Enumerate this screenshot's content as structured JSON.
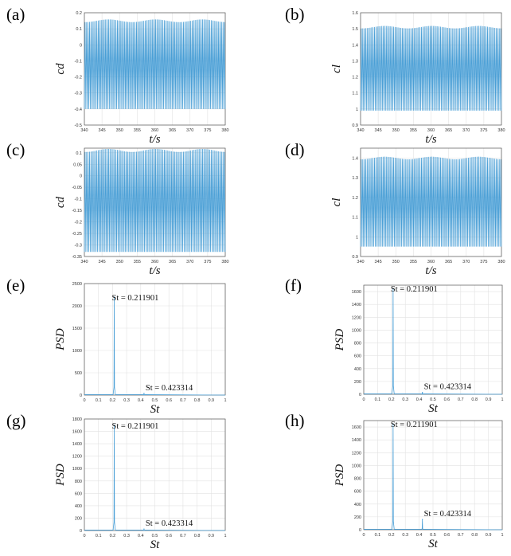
{
  "panels": [
    {
      "letter": "(a)",
      "type": "line",
      "xlabel": "t/s",
      "ylabel": "cd",
      "xticks": [
        "340",
        "345",
        "350",
        "355",
        "360",
        "365",
        "370",
        "375",
        "380"
      ],
      "yticks": [
        "-0.5",
        "-0.4",
        "-0.3",
        "-0.2",
        "-0.1",
        "0",
        "0.1",
        "0.2"
      ],
      "xlim": [
        340,
        380
      ],
      "ylim": [
        -0.5,
        0.2
      ],
      "signal": {
        "min": -0.4,
        "max": 0.15,
        "cycles": 96
      }
    },
    {
      "letter": "(b)",
      "type": "line",
      "xlabel": "t/s",
      "ylabel": "cl",
      "xticks": [
        "340",
        "345",
        "350",
        "355",
        "360",
        "365",
        "370",
        "375",
        "380"
      ],
      "yticks": [
        "0.9",
        "1",
        "1.1",
        "1.2",
        "1.3",
        "1.4",
        "1.5",
        "1.6"
      ],
      "xlim": [
        340,
        380
      ],
      "ylim": [
        0.9,
        1.6
      ],
      "signal": {
        "min": 0.99,
        "max": 1.51,
        "cycles": 96
      }
    },
    {
      "letter": "(c)",
      "type": "line",
      "xlabel": "t/s",
      "ylabel": "cd",
      "xticks": [
        "340",
        "345",
        "350",
        "355",
        "360",
        "365",
        "370",
        "375",
        "380"
      ],
      "yticks": [
        "-0.35",
        "-0.3",
        "-0.25",
        "-0.2",
        "-0.15",
        "-0.1",
        "-0.05",
        "0",
        "0.05",
        "0.1"
      ],
      "xlim": [
        340,
        380
      ],
      "ylim": [
        -0.35,
        0.12
      ],
      "signal": {
        "min": -0.33,
        "max": 0.11,
        "cycles": 96
      }
    },
    {
      "letter": "(d)",
      "type": "line",
      "xlabel": "t/s",
      "ylabel": "cl",
      "xticks": [
        "340",
        "345",
        "350",
        "355",
        "360",
        "365",
        "370",
        "375",
        "380"
      ],
      "yticks": [
        "0.9",
        "1",
        "1.1",
        "1.2",
        "1.3",
        "1.4"
      ],
      "xlim": [
        340,
        380
      ],
      "ylim": [
        0.9,
        1.45
      ],
      "signal": {
        "min": 0.95,
        "max": 1.4,
        "cycles": 96
      }
    },
    {
      "letter": "(e)",
      "type": "psd",
      "xlabel": "St",
      "ylabel": "PSD",
      "xticks": [
        "0",
        "0.1",
        "0.2",
        "0.3",
        "0.4",
        "0.5",
        "0.6",
        "0.7",
        "0.8",
        "0.9",
        "1"
      ],
      "yticks": [
        "0",
        "500",
        "1000",
        "1500",
        "2000",
        "2500"
      ],
      "xlim": [
        0,
        1
      ],
      "ylim": [
        0,
        2500
      ],
      "peaks": [
        {
          "x": 0.211901,
          "y": 2200
        },
        {
          "x": 0.423314,
          "y": 40
        }
      ],
      "annotations": [
        "St = 0.211901",
        "St = 0.423314"
      ]
    },
    {
      "letter": "(f)",
      "type": "psd",
      "xlabel": "St",
      "ylabel": "PSD",
      "xticks": [
        "0",
        "0.1",
        "0.2",
        "0.3",
        "0.4",
        "0.5",
        "0.6",
        "0.7",
        "0.8",
        "0.9",
        "1"
      ],
      "yticks": [
        "0",
        "200",
        "400",
        "600",
        "800",
        "1000",
        "1200",
        "1400",
        "1600"
      ],
      "xlim": [
        0,
        1
      ],
      "ylim": [
        0,
        1700
      ],
      "peaks": [
        {
          "x": 0.211901,
          "y": 1650
        },
        {
          "x": 0.423314,
          "y": 30
        }
      ],
      "annotations": [
        "St = 0.211901",
        "St = 0.423314"
      ]
    },
    {
      "letter": "(g)",
      "type": "psd",
      "xlabel": "St",
      "ylabel": "PSD",
      "xticks": [
        "0",
        "0.1",
        "0.2",
        "0.3",
        "0.4",
        "0.5",
        "0.6",
        "0.7",
        "0.8",
        "0.9",
        "1"
      ],
      "yticks": [
        "0",
        "200",
        "400",
        "600",
        "800",
        "1000",
        "1200",
        "1400",
        "1600",
        "1800"
      ],
      "xlim": [
        0,
        1
      ],
      "ylim": [
        0,
        1800
      ],
      "peaks": [
        {
          "x": 0.211901,
          "y": 1700
        },
        {
          "x": 0.423314,
          "y": 25
        }
      ],
      "annotations": [
        "St = 0.211901",
        "St = 0.423314"
      ]
    },
    {
      "letter": "(h)",
      "type": "psd",
      "xlabel": "St",
      "ylabel": "PSD",
      "xticks": [
        "0",
        "0.1",
        "0.2",
        "0.3",
        "0.4",
        "0.5",
        "0.6",
        "0.7",
        "0.8",
        "0.9",
        "1"
      ],
      "yticks": [
        "0",
        "200",
        "400",
        "600",
        "800",
        "1000",
        "1200",
        "1400",
        "1600"
      ],
      "xlim": [
        0,
        1
      ],
      "ylim": [
        0,
        1700
      ],
      "peaks": [
        {
          "x": 0.211901,
          "y": 1650
        },
        {
          "x": 0.423314,
          "y": 160
        }
      ],
      "annotations": [
        "St = 0.211901",
        "St = 0.423314"
      ]
    }
  ],
  "colors": {
    "line": "#4a9fd6",
    "grid": "#e2e2e2",
    "axis": "#555555"
  },
  "chart_data": [
    {
      "type": "line",
      "xlabel": "t/s",
      "ylabel": "cd",
      "xlim": [
        340,
        380
      ],
      "ylim": [
        -0.5,
        0.2
      ],
      "series": [
        {
          "values_range": [
            -0.4,
            0.15
          ]
        }
      ]
    },
    {
      "type": "line",
      "xlabel": "t/s",
      "ylabel": "cl",
      "xlim": [
        340,
        380
      ],
      "ylim": [
        0.9,
        1.6
      ],
      "series": [
        {
          "values_range": [
            0.99,
            1.51
          ]
        }
      ]
    },
    {
      "type": "line",
      "xlabel": "t/s",
      "ylabel": "cd",
      "xlim": [
        340,
        380
      ],
      "ylim": [
        -0.35,
        0.12
      ],
      "series": [
        {
          "values_range": [
            -0.33,
            0.11
          ]
        }
      ]
    },
    {
      "type": "line",
      "xlabel": "t/s",
      "ylabel": "cl",
      "xlim": [
        340,
        380
      ],
      "ylim": [
        0.9,
        1.45
      ],
      "series": [
        {
          "values_range": [
            0.95,
            1.4
          ]
        }
      ]
    },
    {
      "type": "line",
      "xlabel": "St",
      "ylabel": "PSD",
      "xlim": [
        0,
        1
      ],
      "ylim": [
        0,
        2500
      ],
      "peaks": [
        {
          "x": 0.211901,
          "y": 2200
        },
        {
          "x": 0.423314,
          "y": 40
        }
      ]
    },
    {
      "type": "line",
      "xlabel": "St",
      "ylabel": "PSD",
      "xlim": [
        0,
        1
      ],
      "ylim": [
        0,
        1700
      ],
      "peaks": [
        {
          "x": 0.211901,
          "y": 1650
        },
        {
          "x": 0.423314,
          "y": 30
        }
      ]
    },
    {
      "type": "line",
      "xlabel": "St",
      "ylabel": "PSD",
      "xlim": [
        0,
        1
      ],
      "ylim": [
        0,
        1800
      ],
      "peaks": [
        {
          "x": 0.211901,
          "y": 1700
        },
        {
          "x": 0.423314,
          "y": 25
        }
      ]
    },
    {
      "type": "line",
      "xlabel": "St",
      "ylabel": "PSD",
      "xlim": [
        0,
        1
      ],
      "ylim": [
        0,
        1700
      ],
      "peaks": [
        {
          "x": 0.211901,
          "y": 1650
        },
        {
          "x": 0.423314,
          "y": 160
        }
      ]
    }
  ]
}
